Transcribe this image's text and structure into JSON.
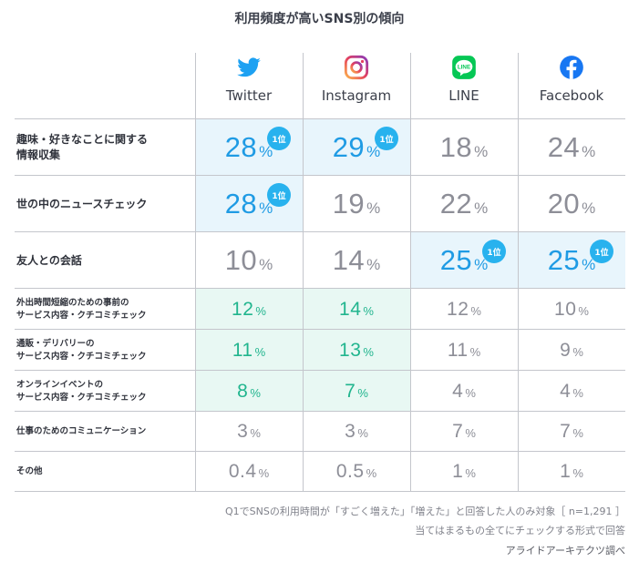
{
  "title": "利用頻度が高いSNS別の傾向",
  "chart_data": {
    "type": "table",
    "title": "利用頻度が高いSNS別の傾向",
    "unit": "%",
    "rank_badge": "1位",
    "columns": [
      {
        "name": "Twitter",
        "icon": "twitter-bird-icon",
        "color": "#1da1f2"
      },
      {
        "name": "Instagram",
        "icon": "instagram-icon",
        "color": "#e4405f"
      },
      {
        "name": "LINE",
        "icon": "line-icon",
        "color": "#06c755"
      },
      {
        "name": "Facebook",
        "icon": "facebook-icon",
        "color": "#1877f2"
      }
    ],
    "rows": [
      {
        "label": "趣味・好きなことに関する\n情報収集",
        "size": "big",
        "values": [
          "28",
          "29",
          "18",
          "24"
        ],
        "top": [
          true,
          true,
          false,
          false
        ]
      },
      {
        "label": "世の中のニュースチェック",
        "size": "big",
        "values": [
          "28",
          "19",
          "22",
          "20"
        ],
        "top": [
          true,
          false,
          false,
          false
        ]
      },
      {
        "label": "友人との会話",
        "size": "big",
        "values": [
          "10",
          "14",
          "25",
          "25"
        ],
        "top": [
          false,
          false,
          true,
          true
        ]
      },
      {
        "label": "外出時間短縮のための事前の\nサービス内容・クチコミチェック",
        "size": "small",
        "values": [
          "12",
          "14",
          "12",
          "10"
        ],
        "top": [
          false,
          false,
          false,
          false
        ],
        "green": [
          true,
          true,
          false,
          false
        ]
      },
      {
        "label": "通販・デリバリーの\nサービス内容・クチコミチェック",
        "size": "small",
        "values": [
          "11",
          "13",
          "11",
          "9"
        ],
        "top": [
          false,
          false,
          false,
          false
        ],
        "green": [
          true,
          true,
          false,
          false
        ]
      },
      {
        "label": "オンラインイベントの\nサービス内容・クチコミチェック",
        "size": "small",
        "values": [
          "8",
          "7",
          "4",
          "4"
        ],
        "top": [
          false,
          false,
          false,
          false
        ],
        "green": [
          true,
          true,
          false,
          false
        ]
      },
      {
        "label": "仕事のためのコミュニケーション",
        "size": "small",
        "values": [
          "3",
          "3",
          "7",
          "7"
        ],
        "top": [
          false,
          false,
          false,
          false
        ]
      },
      {
        "label": "その他",
        "size": "small",
        "values": [
          "0.4",
          "0.5",
          "1",
          "1"
        ],
        "top": [
          false,
          false,
          false,
          false
        ]
      }
    ],
    "colors": {
      "top_text": "#1f9be4",
      "top_bg": "#e8f5fc",
      "green_text": "#21b58e",
      "green_bg": "#e8f8f3",
      "normal_text": "#8d8e97",
      "badge_bg": "#28b2ee"
    }
  },
  "footer": {
    "note1": "Q1でSNSの利用時間が「すごく増えた」「増えた」と回答した人のみ対象［ n=1,291 ］",
    "note2": "当てはまるもの全てにチェックする形式で回答",
    "source": "アライドアーキテクツ調べ"
  }
}
